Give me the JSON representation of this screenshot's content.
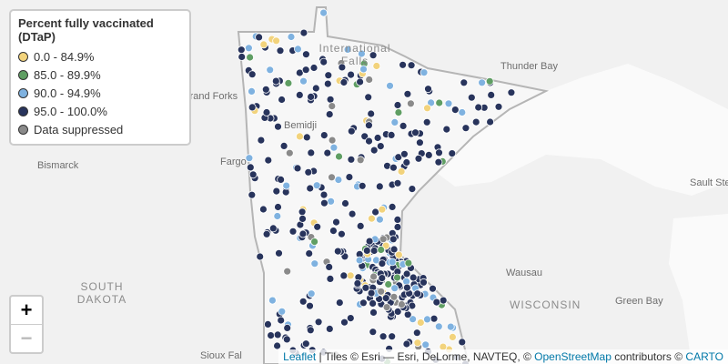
{
  "legend": {
    "title": "Percent fully vaccinated (DTaP)",
    "items": [
      {
        "label": "0.0 - 84.9%",
        "color": "#f2d37c"
      },
      {
        "label": "85.0 - 89.9%",
        "color": "#5f9e63"
      },
      {
        "label": "90.0 - 94.9%",
        "color": "#7fb2e0"
      },
      {
        "label": "95.0 - 100.0%",
        "color": "#28345c"
      },
      {
        "label": "Data suppressed",
        "color": "#8a8a8a"
      }
    ]
  },
  "places": [
    {
      "label": "International Falls"
    },
    {
      "label": "Thunder Bay"
    },
    {
      "label": "Grand Forks"
    },
    {
      "label": "Bemidji"
    },
    {
      "label": "Bismarck"
    },
    {
      "label": "Fargo"
    },
    {
      "label": "Sault Ste"
    },
    {
      "label": "SOUTH DAKOTA"
    },
    {
      "label": "Wausau"
    },
    {
      "label": "WISCONSIN"
    },
    {
      "label": "Green Bay"
    },
    {
      "label": "Sioux Fal"
    }
  ],
  "zoom": {
    "in": "+",
    "out": "−"
  },
  "attribution": [
    "Leaflet",
    " | Tiles © Esri — Esri, DeLorme, NAVTEQ, © ",
    "OpenStreetMap",
    " contributors © ",
    "CARTO"
  ]
}
